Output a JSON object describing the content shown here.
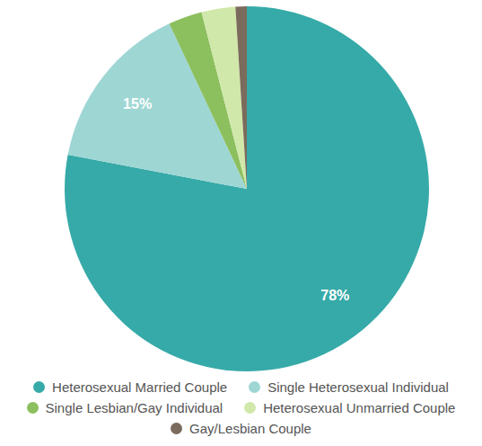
{
  "chart_data": {
    "type": "pie",
    "categories": [
      "Heterosexual Married Couple",
      "Single Heterosexual Individual",
      "Single Lesbian/Gay Individual",
      "Heterosexual Unmarried Couple",
      "Gay/Lesbian Couple"
    ],
    "values": [
      78,
      15,
      3,
      3,
      1
    ],
    "value_labels": [
      "78%",
      "15%",
      null,
      null,
      null
    ],
    "colors": [
      "#36aaa8",
      "#9ed6d4",
      "#8cbf5e",
      "#d0e8a9",
      "#7b6b5c"
    ],
    "data_labels": true,
    "legend": "bottom"
  }
}
